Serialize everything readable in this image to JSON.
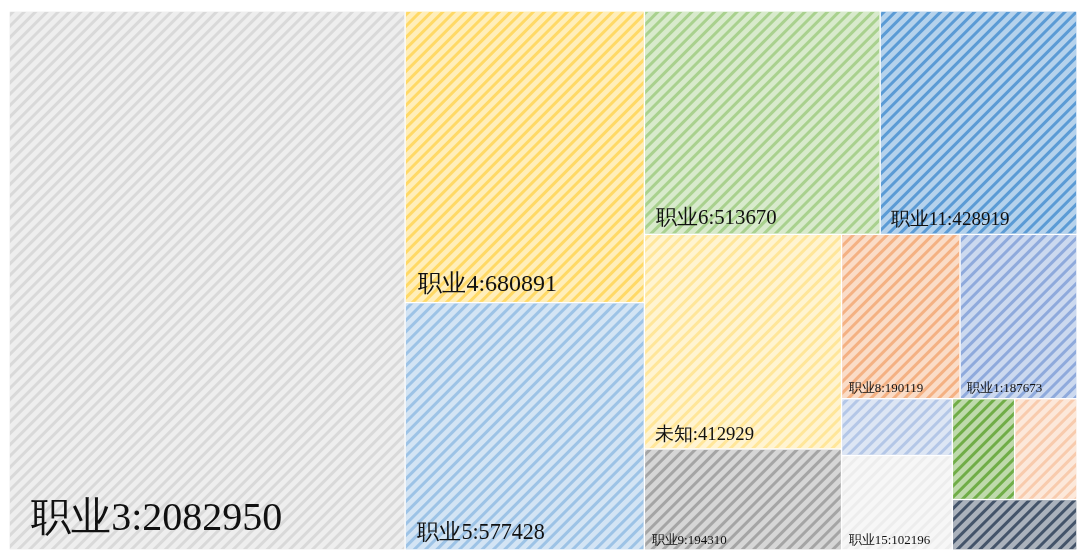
{
  "chart_data": {
    "type": "other",
    "categories": [
      "职业3",
      "职业4",
      "职业5",
      "职业6",
      "职业11",
      "未知",
      "职业9",
      "职业8",
      "职业1",
      null,
      "职业15",
      null,
      null,
      null
    ],
    "values": [
      2082950,
      680891,
      577428,
      513670,
      428919,
      412929,
      194310,
      190119,
      187673,
      null,
      102196,
      null,
      null,
      null
    ],
    "value_labels": [
      ":2082950",
      ":680891",
      ":577428",
      ":513670",
      ":428919",
      ":412929",
      ":194310",
      ":190119",
      ":187673",
      null,
      ":102196",
      null,
      null,
      null
    ],
    "colors": [
      "#d9d9d9",
      "#ffd966",
      "#9dc3e6",
      "#a9d18e",
      "#5b9bd5",
      "#ffe699",
      "#a5a5a5",
      "#f4b183",
      "#8faadc",
      "#b4c7e7",
      "#ededed",
      "#70ad47",
      "#f8cbad",
      "#44546a"
    ]
  }
}
